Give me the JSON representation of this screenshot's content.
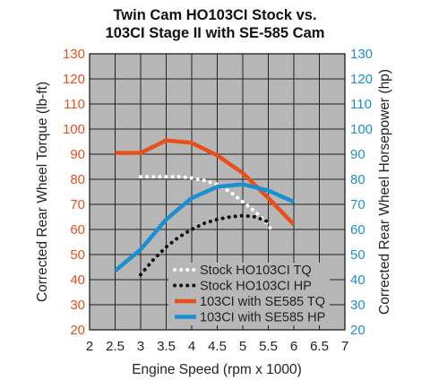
{
  "chart_data": {
    "type": "line",
    "title_line1": "Twin Cam HO103CI Stock vs.",
    "title_line2": "103CI Stage II with SE-585 Cam",
    "xlabel": "Engine Speed (rpm x 1000)",
    "ylabel_left": "Corrected Rear Wheel Torque (lb-ft)",
    "ylabel_right": "Corrected Rear Wheel Horsepower (hp)",
    "xlim": [
      2,
      7
    ],
    "ylim_left": [
      20,
      130
    ],
    "ylim_right": [
      20,
      130
    ],
    "x_ticks": [
      "2",
      "2.5",
      "3",
      "3.5",
      "4",
      "4.5",
      "5",
      "5.5",
      "6",
      "6.5",
      "7"
    ],
    "y_ticks_left": [
      "130",
      "120",
      "110",
      "100",
      "90",
      "80",
      "70",
      "60",
      "50",
      "40",
      "30",
      "20"
    ],
    "y_ticks_right": [
      "130",
      "120",
      "110",
      "100",
      "90",
      "80",
      "70",
      "60",
      "50",
      "40",
      "30",
      "20"
    ],
    "grid": true,
    "legend_position": "bottom-right",
    "colors": {
      "left_axis": "#e94e1b",
      "right_axis": "#1a8fd1",
      "plot_background": "#b7b7b7",
      "grid": "#222222"
    },
    "series": [
      {
        "name": "Stock HO103CI TQ",
        "style": "dotted",
        "color": "#ffffff",
        "x": [
          3,
          3.25,
          3.5,
          3.75,
          4,
          4.25,
          4.5,
          4.75,
          5,
          5.25,
          5.5,
          5.55
        ],
        "y": [
          81,
          81,
          81,
          81,
          80.5,
          79.5,
          78,
          75,
          71,
          67,
          62,
          60
        ]
      },
      {
        "name": "Stock HO103CI HP",
        "style": "dotted",
        "color": "#111111",
        "x": [
          3,
          3.25,
          3.5,
          3.75,
          4,
          4.25,
          4.5,
          4.75,
          5,
          5.25,
          5.5
        ],
        "y": [
          42,
          48,
          53,
          57,
          60,
          62.5,
          64,
          65,
          65.5,
          65,
          63
        ]
      },
      {
        "name": "103CI with SE585 TQ",
        "style": "solid",
        "color": "#e94e1b",
        "x": [
          2.5,
          3,
          3.5,
          4,
          4.5,
          5,
          5.5,
          6
        ],
        "y": [
          90.5,
          90.5,
          95.5,
          94.5,
          89.5,
          82.5,
          72.5,
          62
        ]
      },
      {
        "name": "103CI with SE585 HP",
        "style": "solid",
        "color": "#1a8fd1",
        "x": [
          2.5,
          3,
          3.5,
          4,
          4.5,
          5,
          5.5,
          6
        ],
        "y": [
          43.5,
          52,
          64,
          72.5,
          77,
          78,
          75.5,
          71
        ]
      }
    ]
  }
}
